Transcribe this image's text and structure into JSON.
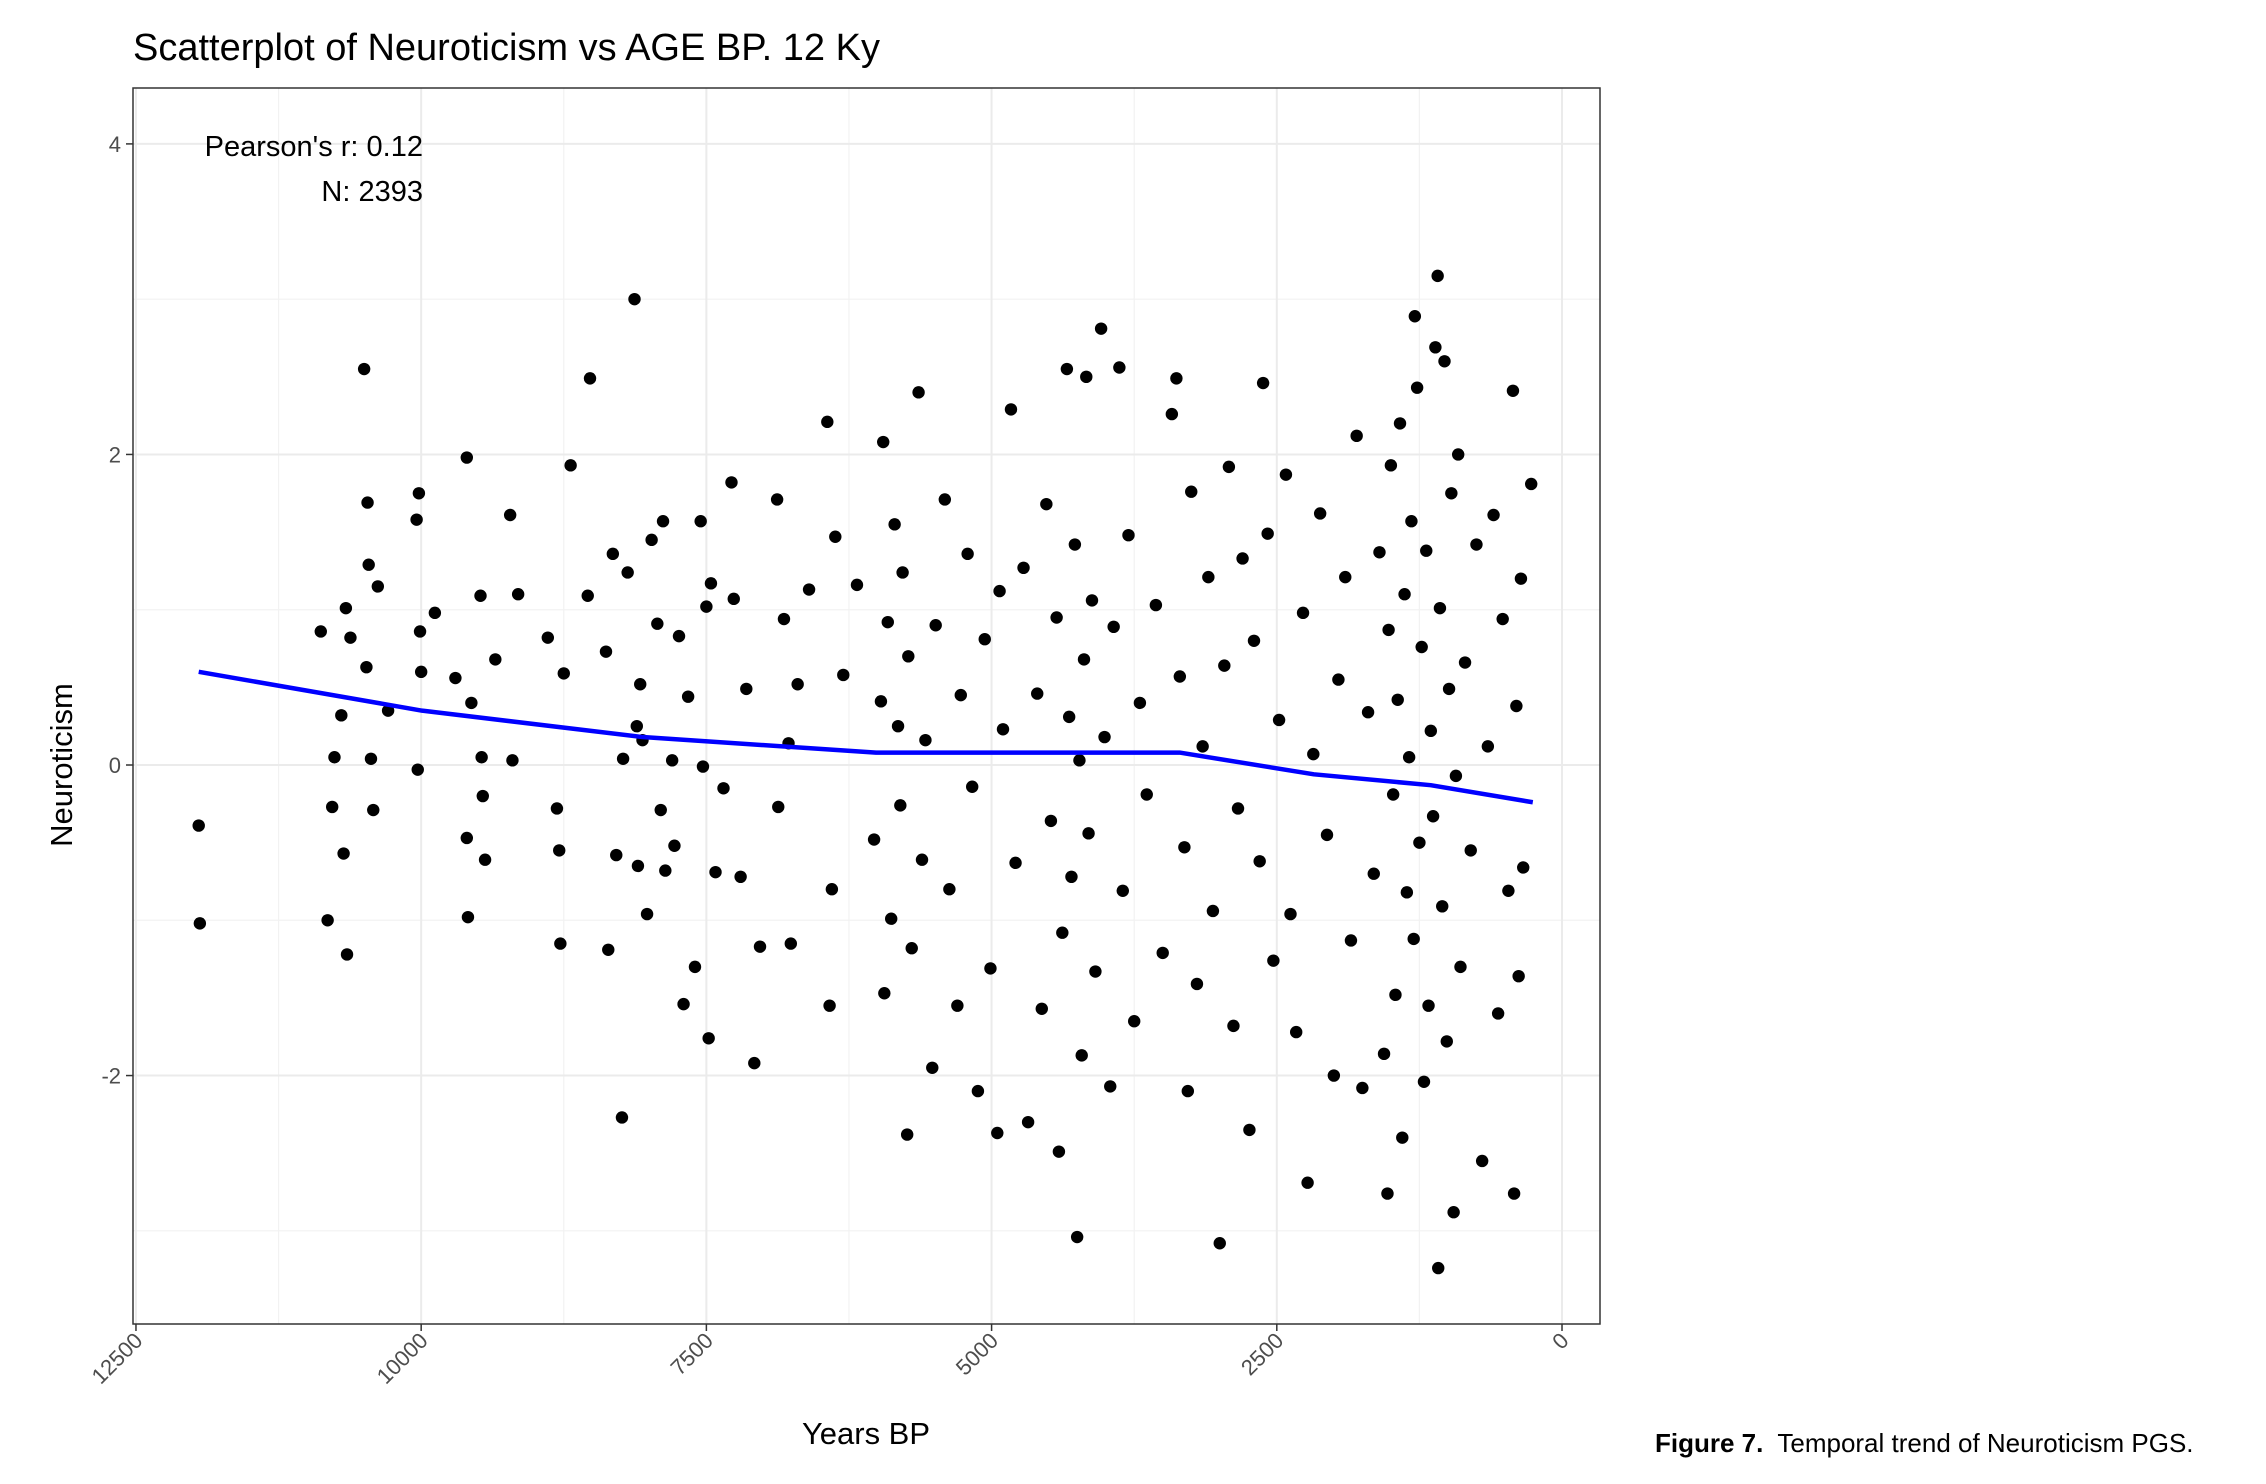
{
  "chart_data": {
    "type": "scatter",
    "title": "Scatterplot of Neuroticism vs AGE BP. 12 Ky",
    "xlabel": "Years BP",
    "ylabel": "Neuroticism",
    "annotations": [
      "Pearson's r: 0.12",
      "N: 2393"
    ],
    "xlim": [
      12526,
      -333
    ],
    "xticks": [
      12500,
      10000,
      7500,
      5000,
      2500,
      0
    ],
    "ylim": [
      -3.6,
      4.36
    ],
    "yticks": [
      -2,
      0,
      2,
      4
    ],
    "grid": true,
    "color": "#000000",
    "x": [
      11950,
      11940,
      10880,
      10820,
      10780,
      10760,
      10700,
      10680,
      10650,
      10660,
      10620,
      10500,
      10480,
      10470,
      10460,
      10440,
      10420,
      10380,
      10290,
      10040,
      10020,
      10010,
      10000,
      10030,
      9880,
      9700,
      9600,
      9600,
      9590,
      9560,
      9480,
      9470,
      9460,
      9440,
      9350,
      9220,
      9200,
      9150,
      8890,
      8810,
      8790,
      8780,
      8750,
      8690,
      8520,
      8540,
      8380,
      8360,
      8320,
      8290,
      8240,
      8230,
      8190,
      8130,
      8110,
      8100,
      8080,
      8060,
      8020,
      7980,
      7930,
      7900,
      7880,
      7860,
      7800,
      7780,
      7740,
      7700,
      7660,
      7600,
      7550,
      7530,
      7500,
      7480,
      7460,
      7420,
      7350,
      7280,
      7260,
      7200,
      7150,
      7080,
      7030,
      6880,
      6870,
      6820,
      6780,
      6760,
      6700,
      6600,
      6440,
      6420,
      6400,
      6370,
      6300,
      6180,
      6030,
      5970,
      5950,
      5940,
      5910,
      5880,
      5850,
      5820,
      5800,
      5780,
      5740,
      5730,
      5700,
      5640,
      5610,
      5580,
      5520,
      5490,
      5410,
      5370,
      5300,
      5270,
      5210,
      5170,
      5120,
      5060,
      5010,
      4950,
      4930,
      4900,
      4830,
      4790,
      4720,
      4680,
      4600,
      4560,
      4520,
      4480,
      4430,
      4410,
      4380,
      4340,
      4320,
      4300,
      4270,
      4250,
      4230,
      4210,
      4190,
      4170,
      4150,
      4120,
      4090,
      4040,
      4010,
      3960,
      3930,
      3880,
      3850,
      3800,
      3750,
      3700,
      3640,
      3560,
      3500,
      3420,
      3380,
      3350,
      3310,
      3280,
      3250,
      3200,
      3150,
      3100,
      3060,
      3000,
      2960,
      2920,
      2880,
      2840,
      2800,
      2740,
      2700,
      2650,
      2620,
      2580,
      2530,
      2480,
      2420,
      2380,
      2330,
      2270,
      2230,
      2180,
      2120,
      2060,
      2000,
      1960,
      1900,
      1850,
      1800,
      1750,
      1700,
      1650,
      1600,
      1560,
      1530,
      1520,
      1500,
      1480,
      1460,
      1440,
      1420,
      1400,
      1380,
      1360,
      1340,
      1320,
      1300,
      1290,
      1270,
      1250,
      1230,
      1210,
      1190,
      1170,
      1150,
      1130,
      1110,
      1090,
      1085,
      1070,
      1050,
      1030,
      1010,
      990,
      970,
      950,
      930,
      910,
      890,
      850,
      800,
      750,
      700,
      650,
      600,
      560,
      520,
      470,
      430,
      420,
      400,
      380,
      360,
      340,
      270
    ],
    "values": [
      -0.39,
      -1.02,
      0.86,
      -1.0,
      -0.27,
      0.05,
      0.32,
      -0.57,
      -1.22,
      1.01,
      0.82,
      2.55,
      0.63,
      1.69,
      1.29,
      0.04,
      -0.29,
      1.15,
      0.35,
      1.58,
      1.75,
      0.86,
      0.6,
      -0.03,
      0.98,
      0.56,
      1.98,
      -0.47,
      -0.98,
      0.4,
      1.09,
      0.05,
      -0.2,
      -0.61,
      0.68,
      1.61,
      0.03,
      1.1,
      0.82,
      -0.28,
      -0.55,
      -1.15,
      0.59,
      1.93,
      2.49,
      1.09,
      0.73,
      -1.19,
      1.36,
      -0.58,
      -2.27,
      0.04,
      1.24,
      3.0,
      0.25,
      -0.65,
      0.52,
      0.16,
      -0.96,
      1.45,
      0.91,
      -0.29,
      1.57,
      -0.68,
      0.03,
      -0.52,
      0.83,
      -1.54,
      0.44,
      -1.3,
      1.57,
      -0.01,
      1.02,
      -1.76,
      1.17,
      -0.69,
      -0.15,
      1.82,
      1.07,
      -0.72,
      0.49,
      -1.92,
      -1.17,
      1.71,
      -0.27,
      0.94,
      0.14,
      -1.15,
      0.52,
      1.13,
      2.21,
      -1.55,
      -0.8,
      1.47,
      0.58,
      1.16,
      -0.48,
      0.41,
      2.08,
      -1.47,
      0.92,
      -0.99,
      1.55,
      0.25,
      -0.26,
      1.24,
      -2.38,
      0.7,
      -1.18,
      2.4,
      -0.61,
      0.16,
      -1.95,
      0.9,
      1.71,
      -0.8,
      -1.55,
      0.45,
      1.36,
      -0.14,
      -2.1,
      0.81,
      -1.31,
      -2.37,
      1.12,
      0.23,
      2.29,
      -0.63,
      1.27,
      -2.3,
      0.46,
      -1.57,
      1.68,
      -0.36,
      0.95,
      -2.49,
      -1.08,
      2.55,
      0.31,
      -0.72,
      1.42,
      -3.04,
      0.03,
      -1.87,
      0.68,
      2.5,
      -0.44,
      1.06,
      -1.33,
      2.81,
      0.18,
      -2.07,
      0.89,
      2.56,
      -0.81,
      1.48,
      -1.65,
      0.4,
      -0.19,
      1.03,
      -1.21,
      2.26,
      2.49,
      0.57,
      -0.53,
      -2.1,
      1.76,
      -1.41,
      0.12,
      1.21,
      -0.94,
      -3.08,
      0.64,
      1.92,
      -1.68,
      -0.28,
      1.33,
      -2.35,
      0.8,
      -0.62,
      2.46,
      1.49,
      -1.26,
      0.29,
      1.87,
      -0.96,
      -1.72,
      0.98,
      -2.69,
      0.07,
      1.62,
      -0.45,
      -2.0,
      0.55,
      1.21,
      -1.13,
      2.12,
      -2.08,
      0.34,
      -0.7,
      1.37,
      -1.86,
      -2.76,
      0.87,
      1.93,
      -0.19,
      -1.48,
      0.42,
      2.2,
      -2.4,
      1.1,
      -0.82,
      0.05,
      1.57,
      -1.12,
      2.89,
      2.43,
      -0.5,
      0.76,
      -2.04,
      1.38,
      -1.55,
      0.22,
      -0.33,
      2.69,
      3.15,
      -3.24,
      1.01,
      -0.91,
      2.6,
      -1.78,
      0.49,
      1.75,
      -2.88,
      -0.07,
      2.0,
      -1.3,
      0.66,
      -0.55,
      1.42,
      -2.55,
      0.12,
      1.61,
      -1.6,
      0.94,
      -0.81,
      2.41,
      -2.76,
      0.38,
      -1.36,
      1.2,
      -0.66,
      1.81
    ],
    "trend": {
      "color": "#0000ff",
      "x": [
        11950,
        9992,
        8060,
        6013,
        4222,
        3352,
        2175,
        1151,
        256
      ],
      "values": [
        0.6,
        0.35,
        0.18,
        0.08,
        0.08,
        0.08,
        -0.06,
        -0.13,
        -0.24
      ]
    }
  },
  "caption": {
    "label": "Figure 7.",
    "text": "Temporal trend of Neuroticism PGS."
  }
}
